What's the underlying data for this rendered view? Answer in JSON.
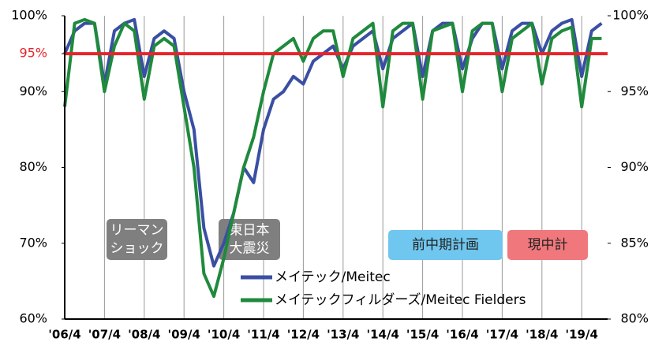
{
  "chart_data": {
    "type": "line",
    "categories": [
      "'06/4",
      null,
      null,
      null,
      "'07/4",
      null,
      null,
      null,
      "'08/4",
      null,
      null,
      null,
      "'09/4",
      null,
      null,
      null,
      "'10/4",
      null,
      null,
      null,
      "'11/4",
      null,
      null,
      null,
      "'12/4",
      null,
      null,
      null,
      "'13/4",
      null,
      null,
      null,
      "'14/4",
      null,
      null,
      null,
      "'15/4",
      null,
      null,
      null,
      "'16/4",
      null,
      null,
      null,
      "'17/4",
      null,
      null,
      null,
      "'18/4",
      null,
      null,
      null,
      "'19/4",
      null,
      null
    ],
    "series": [
      {
        "name": "メイテック/Meitec",
        "color": "#3a4fa3",
        "values": [
          95,
          98,
          99,
          99,
          91,
          98,
          99,
          99.5,
          92,
          97,
          98,
          97,
          90,
          85,
          72,
          67,
          70,
          74,
          80,
          78,
          85,
          89,
          90,
          92,
          91,
          94,
          95,
          96,
          93,
          96,
          97,
          98,
          93,
          97,
          98,
          99,
          92,
          98,
          99,
          99,
          93,
          97,
          99,
          99,
          93,
          98,
          99,
          99,
          95,
          98,
          99,
          99.5,
          92,
          98,
          99
        ]
      },
      {
        "name": "メイテックフィルダーズ/Meitec Fielders",
        "color": "#1f8a3c",
        "values": [
          88,
          99,
          99.5,
          99,
          90,
          96,
          99,
          98,
          89,
          96,
          97,
          96,
          88,
          80,
          66,
          63,
          68,
          74,
          80,
          84,
          90,
          95,
          96,
          97,
          94,
          97,
          98,
          98,
          92,
          97,
          98,
          99,
          88,
          98,
          99,
          99,
          89,
          98,
          98.5,
          99,
          90,
          98,
          99,
          99,
          90,
          97,
          98,
          99,
          91,
          97,
          98,
          98.5,
          88,
          97,
          97
        ]
      }
    ],
    "ylim": [
      60,
      100
    ],
    "yticks": [
      {
        "value": 60,
        "label": "60%"
      },
      {
        "value": 70,
        "label": "70%"
      },
      {
        "value": 80,
        "label": "80%"
      },
      {
        "value": 90,
        "label": "90%"
      },
      {
        "value": 95,
        "label": "95%"
      },
      {
        "value": 100,
        "label": "100%"
      }
    ],
    "y2lim": [
      80,
      100
    ],
    "y2ticks": [
      {
        "value": 80,
        "label": "80%"
      },
      {
        "value": 85,
        "label": "85%"
      },
      {
        "value": 90,
        "label": "90%"
      },
      {
        "value": 95,
        "label": "95%"
      },
      {
        "value": 100,
        "label": "100%"
      }
    ],
    "target": 95,
    "target_color": "#e8242b",
    "annotations": [
      {
        "lines": [
          "リーマン",
          "ショック"
        ],
        "color": "#7f7f7f"
      },
      {
        "lines": [
          "東日本",
          "大震災"
        ],
        "color": "#7f7f7f"
      },
      {
        "lines": [
          "前中期計画"
        ],
        "color": "#6fc6ee"
      },
      {
        "lines": [
          "現中計"
        ],
        "color": "#f0787c"
      }
    ]
  }
}
